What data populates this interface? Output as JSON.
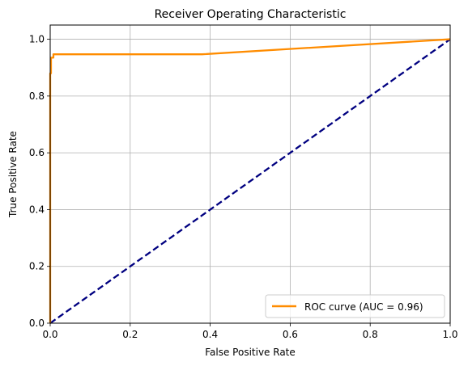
{
  "chart_data": {
    "type": "line",
    "title": "Receiver Operating Characteristic",
    "xlabel": "False Positive Rate",
    "ylabel": "True Positive Rate",
    "xlim": [
      0.0,
      1.0
    ],
    "ylim": [
      0.0,
      1.05
    ],
    "x_ticks": [
      0.0,
      0.2,
      0.4,
      0.6,
      0.8,
      1.0
    ],
    "y_ticks": [
      0.0,
      0.2,
      0.4,
      0.6,
      0.8,
      1.0
    ],
    "x_tick_labels": [
      "0.0",
      "0.2",
      "0.4",
      "0.6",
      "0.8",
      "1.0"
    ],
    "y_tick_labels": [
      "0.0",
      "0.2",
      "0.4",
      "0.6",
      "0.8",
      "1.0"
    ],
    "grid": true,
    "legend_position": "lower-right",
    "series": [
      {
        "name": "ROC curve (AUC = 0.96)",
        "color": "#ff8c00",
        "line_style": "solid",
        "x": [
          0.0,
          0.0,
          0.002,
          0.002,
          0.008,
          0.008,
          0.015,
          0.38,
          1.0
        ],
        "y": [
          0.0,
          0.88,
          0.88,
          0.935,
          0.935,
          0.947,
          0.947,
          0.947,
          1.0
        ]
      },
      {
        "color": "#000080",
        "line_style": "dashed",
        "x": [
          0.0,
          1.0
        ],
        "y": [
          0.0,
          1.0
        ]
      }
    ]
  }
}
